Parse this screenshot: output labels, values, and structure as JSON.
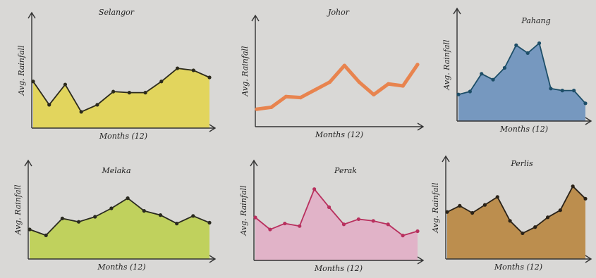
{
  "chart_data": [
    {
      "type": "area",
      "title": "Selangor",
      "x_label": "Months (12)",
      "y_label": "Avg. Rainfall",
      "line_color": "#2c2a1c",
      "color": "#e3d43f",
      "ylim": [
        0,
        10
      ],
      "values": [
        4.6,
        2.3,
        4.3,
        1.6,
        2.3,
        3.6,
        3.5,
        3.5,
        4.6,
        5.9,
        5.7,
        5.0
      ]
    },
    {
      "type": "line",
      "title": "Johor",
      "x_label": "Months (12)",
      "y_label": "Avg. Rainfall",
      "line_color": "#e8844f",
      "color": "#e8844f",
      "ylim": [
        0,
        10
      ],
      "values": [
        1.8,
        2.0,
        3.1,
        3.0,
        3.8,
        4.6,
        6.3,
        4.6,
        3.3,
        4.4,
        4.2,
        6.4
      ]
    },
    {
      "type": "area",
      "title": "Pahang",
      "x_label": "Months (12)",
      "y_label": "Avg. Rainfall",
      "line_color": "#1d4e68",
      "color": "#5c88b9",
      "ylim": [
        0,
        10
      ],
      "values": [
        2.7,
        3.0,
        4.8,
        4.2,
        5.4,
        7.7,
        6.9,
        7.9,
        3.3,
        3.1,
        3.1,
        1.8
      ]
    },
    {
      "type": "area",
      "title": "Melaka",
      "x_label": "Months (12)",
      "y_label": "Avg. Rainfall",
      "line_color": "#2a2a20",
      "color": "#b9cf3e",
      "ylim": [
        0,
        10
      ],
      "values": [
        3.5,
        2.8,
        4.8,
        4.4,
        5.0,
        6.0,
        7.2,
        5.7,
        5.2,
        4.2,
        5.1,
        4.3
      ]
    },
    {
      "type": "area",
      "title": "Perak",
      "x_label": "Months (12)",
      "y_label": "Avg. Rainfall",
      "line_color": "#b8305e",
      "color": "#e2aac4",
      "ylim": [
        0,
        10
      ],
      "values": [
        5.0,
        3.6,
        4.3,
        4.0,
        8.3,
        6.2,
        4.2,
        4.8,
        4.6,
        4.2,
        2.9,
        3.4
      ]
    },
    {
      "type": "area",
      "title": "Perlis",
      "x_label": "Months (12)",
      "y_label": "Avg. Rainfall",
      "line_color": "#2a2218",
      "color": "#b47c2c",
      "ylim": [
        0,
        10
      ],
      "values": [
        5.3,
        6.0,
        5.2,
        6.1,
        7.0,
        4.3,
        2.9,
        3.6,
        4.7,
        5.5,
        8.2,
        6.8
      ]
    }
  ]
}
